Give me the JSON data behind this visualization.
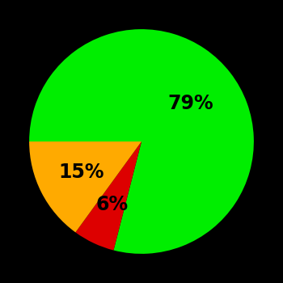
{
  "slices": [
    79,
    6,
    15
  ],
  "colors": [
    "#00ee00",
    "#dd0000",
    "#ffaa00"
  ],
  "labels": [
    "79%",
    "6%",
    "15%"
  ],
  "background_color": "#000000",
  "startangle": 180,
  "figsize": [
    3.5,
    3.5
  ],
  "dpi": 100,
  "label_fontsize": 17,
  "label_fontweight": "bold",
  "label_radii": [
    0.55,
    0.62,
    0.6
  ]
}
